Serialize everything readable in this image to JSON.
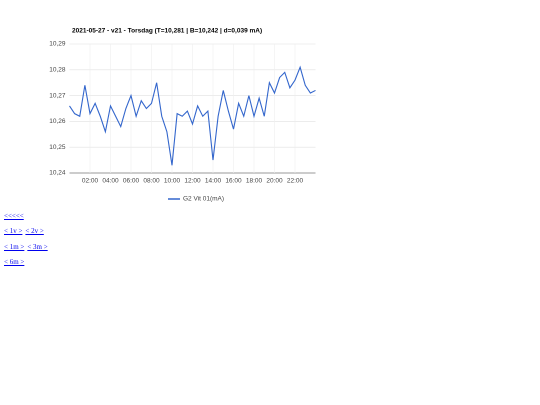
{
  "chart_data": {
    "type": "line",
    "title": "2021-05-27 - v21 - Torsdag (T=10,281 | B=10,242 | d=0,039 mA)",
    "x": [
      0,
      0.5,
      1,
      1.5,
      2,
      2.5,
      3,
      3.5,
      4,
      4.5,
      5,
      5.5,
      6,
      6.5,
      7,
      7.5,
      8,
      8.5,
      9,
      9.5,
      10,
      10.5,
      11,
      11.5,
      12,
      12.5,
      13,
      13.5,
      14,
      14.5,
      15,
      15.5,
      16,
      16.5,
      17,
      17.5,
      18,
      18.5,
      19,
      19.5,
      20,
      20.5,
      21,
      21.5,
      22,
      22.5,
      23,
      23.5,
      24
    ],
    "series": [
      {
        "name": "G2 Vit 01(mA)",
        "color": "#3366cc",
        "values": [
          10.266,
          10.263,
          10.262,
          10.274,
          10.263,
          10.267,
          10.262,
          10.256,
          10.266,
          10.262,
          10.258,
          10.265,
          10.27,
          10.262,
          10.268,
          10.265,
          10.267,
          10.275,
          10.262,
          10.256,
          10.243,
          10.263,
          10.262,
          10.264,
          10.259,
          10.266,
          10.262,
          10.264,
          10.245,
          10.262,
          10.272,
          10.264,
          10.257,
          10.267,
          10.262,
          10.27,
          10.262,
          10.269,
          10.262,
          10.275,
          10.271,
          10.277,
          10.279,
          10.273,
          10.276,
          10.281,
          10.274,
          10.271,
          10.272
        ]
      }
    ],
    "xlim": [
      0,
      24
    ],
    "xticks": [
      {
        "value": 2,
        "label": "02:00"
      },
      {
        "value": 4,
        "label": "04:00"
      },
      {
        "value": 6,
        "label": "06:00"
      },
      {
        "value": 8,
        "label": "08:00"
      },
      {
        "value": 10,
        "label": "10:00"
      },
      {
        "value": 12,
        "label": "12:00"
      },
      {
        "value": 14,
        "label": "14:00"
      },
      {
        "value": 16,
        "label": "16:00"
      },
      {
        "value": 18,
        "label": "18:00"
      },
      {
        "value": 20,
        "label": "20:00"
      },
      {
        "value": 22,
        "label": "22:00"
      }
    ],
    "ylim": [
      10.24,
      10.29
    ],
    "yticks": [
      {
        "value": 10.24,
        "label": "10,24"
      },
      {
        "value": 10.25,
        "label": "10,25"
      },
      {
        "value": 10.26,
        "label": "10,26"
      },
      {
        "value": 10.27,
        "label": "10,27"
      },
      {
        "value": 10.28,
        "label": "10,28"
      },
      {
        "value": 10.29,
        "label": "10,29"
      }
    ],
    "grid": true,
    "legend": "bottom"
  },
  "links": [
    [
      "<<<<<"
    ],
    [
      "< 1v >",
      "< 2v >"
    ],
    [
      "< 1m >",
      "< 3m >"
    ],
    [
      "< 6m >"
    ]
  ]
}
